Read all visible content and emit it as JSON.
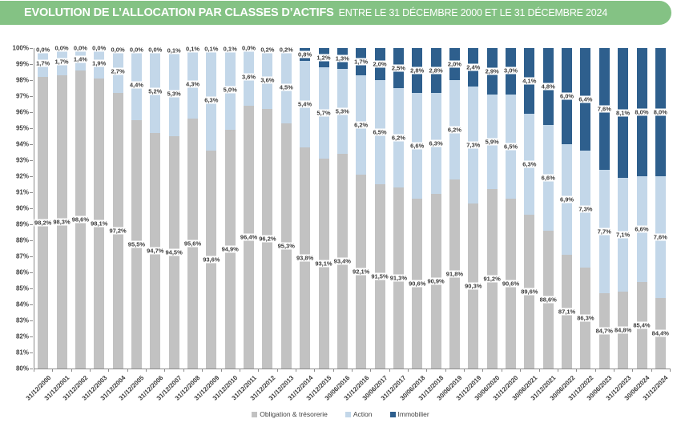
{
  "header": {
    "title_bold": "EVOLUTION DE L’ALLOCATION PAR CLASSES D’ACTIFS",
    "title_rest": "ENTRE LE 31 DÉCEMBRE 2000 ET LE 31 DÉCEMBRE 2024",
    "bg_color": "#84C284"
  },
  "chart_data": {
    "type": "bar",
    "stacked": true,
    "title": "EVOLUTION DE L’ALLOCATION PAR CLASSES D’ACTIFS ENTRE LE 31 DÉCEMBRE 2000 ET LE 31 DÉCEMBRE 2024",
    "grid": false,
    "legend_position": "bottom",
    "ylim": [
      80,
      100
    ],
    "y_ticks": [
      "100%",
      "99%",
      "98%",
      "97%",
      "96%",
      "95%",
      "94%",
      "93%",
      "92%",
      "91%",
      "90%",
      "89%",
      "88%",
      "87%",
      "86%",
      "85%",
      "84%",
      "83%",
      "82%",
      "81%",
      "80%"
    ],
    "categories": [
      "31/12/2000",
      "31/12/2001",
      "31/12/2002",
      "31/12/2003",
      "31/12/2004",
      "31/12/2005",
      "31/12/2006",
      "31/12/2007",
      "31/12/2008",
      "31/12/2009",
      "31/12/2010",
      "31/12/2011",
      "31/12/2012",
      "31/12/2013",
      "31/12/2014",
      "31/12/2015",
      "30/06/2016",
      "31/12/2016",
      "30/06/2017",
      "31/12/2017",
      "30/06/2018",
      "31/12/2018",
      "30/06/2019",
      "31/12/2019",
      "30/06/2020",
      "31/12/2020",
      "30/06/2021",
      "31/12/2021",
      "30/06/2022",
      "31/12/2022",
      "30/06/2023",
      "31/12/2023",
      "30/06/2024",
      "31/12/2024"
    ],
    "series": [
      {
        "name": "Obligation & trésorerie",
        "color": "#C2C2C2",
        "values": [
          98.2,
          98.3,
          98.6,
          98.1,
          97.2,
          95.5,
          94.7,
          94.5,
          95.6,
          93.6,
          94.9,
          96.4,
          96.2,
          95.3,
          93.8,
          93.1,
          93.4,
          92.1,
          91.5,
          91.3,
          90.6,
          90.9,
          91.8,
          90.3,
          91.2,
          90.6,
          89.6,
          88.6,
          87.1,
          86.3,
          84.7,
          84.8,
          85.4,
          84.4
        ]
      },
      {
        "name": "Action",
        "color": "#C3D7E9",
        "values": [
          1.7,
          1.7,
          1.4,
          1.9,
          2.7,
          4.4,
          5.2,
          5.3,
          4.3,
          6.3,
          5.0,
          3.6,
          3.6,
          4.5,
          5.4,
          5.7,
          5.3,
          6.2,
          6.5,
          6.2,
          6.6,
          6.3,
          6.2,
          7.3,
          5.9,
          6.5,
          6.3,
          6.6,
          6.9,
          7.3,
          7.7,
          7.1,
          6.6,
          7.6
        ]
      },
      {
        "name": "Immobilier",
        "color": "#2E5F8D",
        "values": [
          0.0,
          0.0,
          0.0,
          0.0,
          0.0,
          0.0,
          0.0,
          0.1,
          0.1,
          0.1,
          0.1,
          0.0,
          0.2,
          0.2,
          0.8,
          1.2,
          1.3,
          1.7,
          2.0,
          2.5,
          2.8,
          2.8,
          2.0,
          2.4,
          2.9,
          3.0,
          4.1,
          4.8,
          6.0,
          6.4,
          7.6,
          8.1,
          8.0,
          8.0
        ]
      }
    ]
  }
}
